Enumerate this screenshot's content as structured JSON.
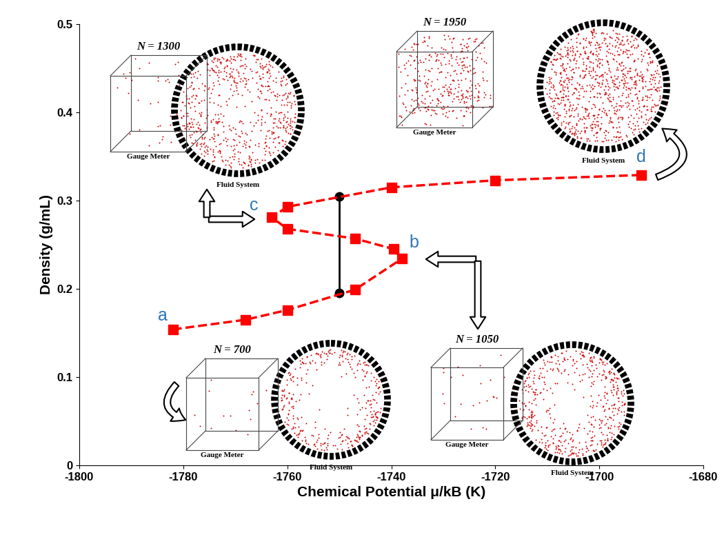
{
  "chart_data": {
    "type": "line",
    "xlabel": "Chemical Potential μ/kB (K)",
    "ylabel": "Density (g/mL)",
    "xlim": [
      -1800,
      -1680
    ],
    "xticks": [
      -1800,
      -1780,
      -1760,
      -1740,
      -1720,
      -1700,
      -1680
    ],
    "ylim": [
      0,
      0.5
    ],
    "yticks": [
      0,
      0.1,
      0.2,
      0.3,
      0.4,
      0.5
    ],
    "series": [
      {
        "type": "line",
        "color": "#ff0000",
        "marker": "square",
        "line_style": "dashed",
        "x": [
          -1782,
          -1768,
          -1760,
          -1747,
          -1738,
          -1739.5,
          -1747,
          -1760,
          -1763,
          -1760,
          -1740,
          -1720,
          -1692
        ],
        "values": [
          0.154,
          0.165,
          0.176,
          0.199,
          0.234,
          0.245,
          0.257,
          0.268,
          0.281,
          0.293,
          0.315,
          0.323,
          0.329
        ],
        "labels": [
          "a",
          null,
          null,
          null,
          "b",
          null,
          null,
          null,
          "c",
          null,
          null,
          null,
          "d"
        ]
      },
      {
        "type": "line",
        "color": "#000000",
        "marker": "circle",
        "line_style": "solid",
        "x": [
          -1750,
          -1750
        ],
        "values": [
          0.195,
          0.305
        ]
      }
    ],
    "insets": [
      {
        "point": "a",
        "N": "N = 700",
        "gauge": "Gauge Meter",
        "fluid": "Fluid System"
      },
      {
        "point": "b",
        "N": "N = 1050",
        "gauge": "Gauge Meter",
        "fluid": "Fluid System"
      },
      {
        "point": "c",
        "N": "N = 1300",
        "gauge": "Gauge Meter",
        "fluid": "Fluid System"
      },
      {
        "point": "d",
        "N": "N = 1950",
        "gauge": "Gauge Meter",
        "fluid": "Fluid System"
      }
    ]
  }
}
